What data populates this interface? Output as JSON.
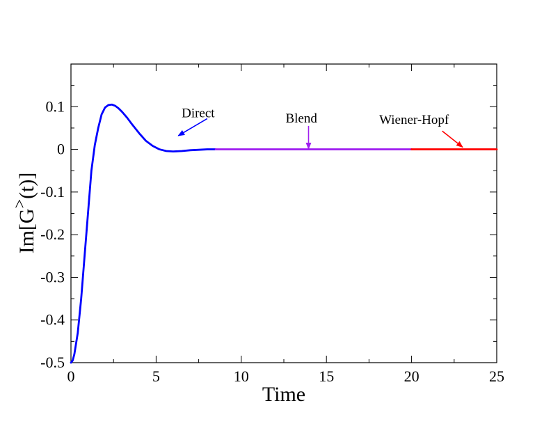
{
  "chart_data": {
    "type": "line",
    "xlabel": "Time",
    "ylabel_main": "Im[G",
    "ylabel_sup": ">",
    "ylabel_tail": "(t)]",
    "xlim": [
      0,
      25
    ],
    "ylim": [
      -0.5,
      0.2
    ],
    "x_ticks": [
      {
        "value": 0,
        "label": "0"
      },
      {
        "value": 5,
        "label": "5"
      },
      {
        "value": 10,
        "label": "10"
      },
      {
        "value": 15,
        "label": "15"
      },
      {
        "value": 20,
        "label": "20"
      },
      {
        "value": 25,
        "label": "25"
      }
    ],
    "y_ticks": [
      {
        "value": 0.1,
        "label": "0.1"
      },
      {
        "value": 0,
        "label": "0"
      },
      {
        "value": -0.1,
        "label": "-0.1"
      },
      {
        "value": -0.2,
        "label": "-0.2"
      },
      {
        "value": -0.3,
        "label": "-0.3"
      },
      {
        "value": -0.4,
        "label": "-0.4"
      },
      {
        "value": -0.5,
        "label": "-0.5"
      }
    ],
    "x_minor_step": 2.5,
    "y_minor_step": 0.05,
    "series": [
      {
        "name": "Direct",
        "color": "#0000ff",
        "x": [
          0,
          0.1,
          0.2,
          0.4,
          0.6,
          0.8,
          1.0,
          1.2,
          1.4,
          1.6,
          1.8,
          2.0,
          2.2,
          2.4,
          2.6,
          2.8,
          3.0,
          3.3,
          3.6,
          4.0,
          4.4,
          4.8,
          5.2,
          5.6,
          6.0,
          6.5,
          7.0,
          7.5,
          8.0,
          8.5
        ],
        "y": [
          -0.5,
          -0.495,
          -0.48,
          -0.43,
          -0.35,
          -0.25,
          -0.15,
          -0.05,
          0.01,
          0.05,
          0.082,
          0.098,
          0.104,
          0.105,
          0.102,
          0.096,
          0.088,
          0.074,
          0.058,
          0.038,
          0.02,
          0.008,
          0.0,
          -0.004,
          -0.005,
          -0.004,
          -0.002,
          -0.001,
          0.0,
          0.0
        ]
      },
      {
        "name": "Blend",
        "color": "#a020f0",
        "x": [
          8.5,
          20
        ],
        "y": [
          0.0,
          0.0
        ]
      },
      {
        "name": "Wiener-Hopf",
        "color": "#ff0000",
        "x": [
          20,
          25
        ],
        "y": [
          0.0,
          0.0
        ]
      }
    ],
    "annotations": [
      {
        "name": "Direct",
        "label": "Direct",
        "color": "#0000ff",
        "text_x": 6.5,
        "text_y": 0.075,
        "arrow_from": [
          8.0,
          0.072
        ],
        "arrow_to": [
          6.3,
          0.032
        ]
      },
      {
        "name": "Blend",
        "label": "Blend",
        "color": "#a020f0",
        "text_x": 12.6,
        "text_y": 0.063,
        "arrow_from": [
          13.95,
          0.055
        ],
        "arrow_to": [
          13.95,
          0.001
        ]
      },
      {
        "name": "Wiener-Hopf",
        "label": "Wiener-Hopf",
        "color": "#ff0000",
        "text_x": 18.1,
        "text_y": 0.06,
        "arrow_from": [
          21.8,
          0.043
        ],
        "arrow_to": [
          23.0,
          0.005
        ]
      }
    ]
  }
}
